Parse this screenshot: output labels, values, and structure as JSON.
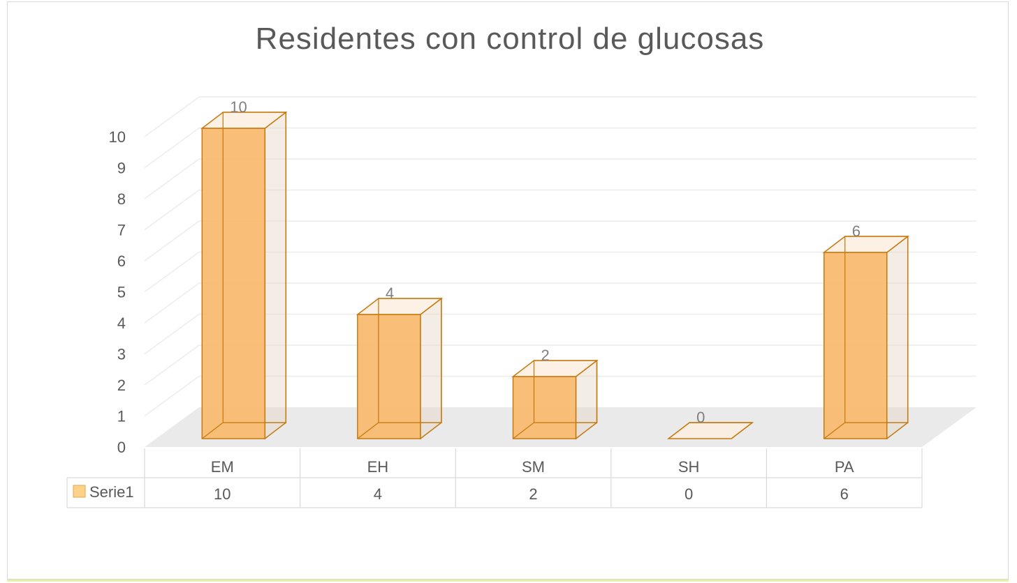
{
  "chart_data": {
    "type": "bar",
    "title": "Residentes con control de glucosas",
    "categories": [
      "EM",
      "EH",
      "SM",
      "SH",
      "PA"
    ],
    "series": [
      {
        "name": "Serie1",
        "values": [
          10,
          4,
          2,
          0,
          6
        ],
        "color": "#f9b96d",
        "edge_color": "#c5790f"
      }
    ],
    "ylim": [
      0,
      10
    ],
    "yticks": [
      0,
      1,
      2,
      3,
      4,
      5,
      6,
      7,
      8,
      9,
      10
    ],
    "grid": true,
    "data_labels": true,
    "legend": "data-table",
    "style": "3d-column"
  }
}
